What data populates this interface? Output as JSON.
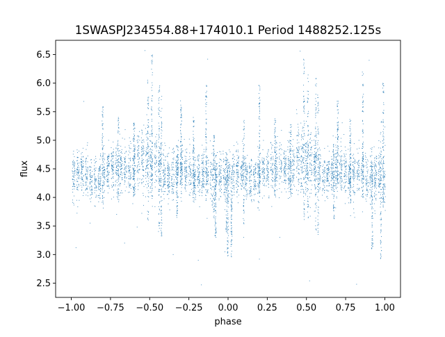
{
  "chart_data": {
    "type": "scatter",
    "title": "1SWASPJ234554.88+174010.1 Period 1488252.125s",
    "xlabel": "phase",
    "ylabel": "flux",
    "xlim": [
      -1.1,
      1.1
    ],
    "ylim": [
      2.25,
      6.75
    ],
    "xticks": [
      -1.0,
      -0.75,
      -0.5,
      -0.25,
      0.0,
      0.25,
      0.5,
      0.75,
      1.0
    ],
    "xtick_labels": [
      "−1.00",
      "−0.75",
      "−0.50",
      "−0.25",
      "0.00",
      "0.25",
      "0.50",
      "0.75",
      "1.00"
    ],
    "yticks": [
      2.5,
      3.0,
      3.5,
      4.0,
      4.5,
      5.0,
      5.5,
      6.0,
      6.5
    ],
    "ytick_labels": [
      "2.5",
      "3.0",
      "3.5",
      "4.0",
      "4.5",
      "5.0",
      "5.5",
      "6.0",
      "6.5"
    ],
    "grid": false,
    "marker_color": "#1f77b4",
    "marker_size": "tiny",
    "folded_period": 1.0,
    "profile": {
      "phase": [
        0.0,
        0.025,
        0.05,
        0.075,
        0.1,
        0.125,
        0.15,
        0.175,
        0.2,
        0.225,
        0.25,
        0.275,
        0.3,
        0.325,
        0.35,
        0.375,
        0.4,
        0.425,
        0.45,
        0.475,
        0.5,
        0.525,
        0.55,
        0.575,
        0.6,
        0.625,
        0.65,
        0.675,
        0.7,
        0.725,
        0.75,
        0.775,
        0.8,
        0.825,
        0.85,
        0.875,
        0.9,
        0.925,
        0.95,
        0.975,
        1.0
      ],
      "median_flux": [
        4.35,
        4.4,
        4.45,
        4.45,
        4.4,
        4.35,
        4.3,
        4.3,
        4.4,
        4.45,
        4.5,
        4.5,
        4.55,
        4.55,
        4.55,
        4.5,
        4.55,
        4.6,
        4.65,
        4.65,
        4.6,
        4.6,
        4.55,
        4.45,
        4.35,
        4.35,
        4.4,
        4.5,
        4.55,
        4.5,
        4.45,
        4.35,
        4.35,
        4.4,
        4.45,
        4.4,
        4.35,
        4.35,
        4.4,
        4.4,
        4.35
      ],
      "spread": [
        0.25,
        0.2,
        0.2,
        0.2,
        0.2,
        0.2,
        0.2,
        0.2,
        0.2,
        0.2,
        0.2,
        0.22,
        0.22,
        0.22,
        0.22,
        0.22,
        0.25,
        0.28,
        0.3,
        0.3,
        0.3,
        0.28,
        0.25,
        0.2,
        0.2,
        0.2,
        0.2,
        0.22,
        0.25,
        0.22,
        0.2,
        0.2,
        0.2,
        0.2,
        0.2,
        0.2,
        0.2,
        0.22,
        0.22,
        0.22,
        0.25
      ]
    },
    "streaks": [
      {
        "phase": -0.002,
        "low": 2.95,
        "high": 4.6
      },
      {
        "phase": 0.022,
        "low": 2.9,
        "high": 4.4
      },
      {
        "phase": -0.09,
        "low": 3.6,
        "high": 5.1
      },
      {
        "phase": 0.1,
        "low": 3.5,
        "high": 5.35
      },
      {
        "phase": -0.3,
        "low": 4.2,
        "high": 5.7
      },
      {
        "phase": -0.325,
        "low": 3.6,
        "high": 5.0
      },
      {
        "phase": 0.7,
        "low": 4.2,
        "high": 5.7
      },
      {
        "phase": 0.675,
        "low": 3.6,
        "high": 5.0
      },
      {
        "phase": -0.44,
        "low": 3.4,
        "high": 6.15
      },
      {
        "phase": -0.425,
        "low": 3.3,
        "high": 5.8
      },
      {
        "phase": -0.485,
        "low": 3.7,
        "high": 6.5
      },
      {
        "phase": -0.51,
        "low": 3.6,
        "high": 6.1
      },
      {
        "phase": 0.485,
        "low": 3.6,
        "high": 6.45
      },
      {
        "phase": 0.51,
        "low": 3.6,
        "high": 6.15
      },
      {
        "phase": 0.56,
        "low": 3.4,
        "high": 6.1
      },
      {
        "phase": 0.575,
        "low": 3.3,
        "high": 5.8
      },
      {
        "phase": -0.7,
        "low": 3.9,
        "high": 5.4
      },
      {
        "phase": 0.3,
        "low": 4.0,
        "high": 5.4
      },
      {
        "phase": 0.2,
        "low": 4.0,
        "high": 6.0
      },
      {
        "phase": -0.8,
        "low": 3.8,
        "high": 5.6
      },
      {
        "phase": 0.86,
        "low": 4.0,
        "high": 6.2
      },
      {
        "phase": -0.14,
        "low": 3.9,
        "high": 6.0
      },
      {
        "phase": 0.92,
        "low": 3.1,
        "high": 4.6
      },
      {
        "phase": -0.08,
        "low": 3.3,
        "high": 4.6
      },
      {
        "phase": 0.975,
        "low": 2.9,
        "high": 5.4
      },
      {
        "phase": 0.99,
        "low": 3.8,
        "high": 6.0
      },
      {
        "phase": -0.01,
        "low": 3.4,
        "high": 4.8
      },
      {
        "phase": -0.6,
        "low": 4.0,
        "high": 5.3
      },
      {
        "phase": 0.4,
        "low": 4.0,
        "high": 5.3
      },
      {
        "phase": -0.22,
        "low": 3.9,
        "high": 5.4
      },
      {
        "phase": 0.78,
        "low": 3.9,
        "high": 5.4
      }
    ],
    "outliers": [
      {
        "x": -0.97,
        "y": 3.12
      },
      {
        "x": -0.66,
        "y": 3.2
      },
      {
        "x": -0.58,
        "y": 3.48
      },
      {
        "x": -0.53,
        "y": 6.57
      },
      {
        "x": -0.35,
        "y": 3.0
      },
      {
        "x": -0.19,
        "y": 2.9
      },
      {
        "x": -0.17,
        "y": 2.47
      },
      {
        "x": -0.13,
        "y": 6.42
      },
      {
        "x": -0.02,
        "y": 3.05
      },
      {
        "x": 0.1,
        "y": 3.3
      },
      {
        "x": 0.2,
        "y": 2.92
      },
      {
        "x": 0.33,
        "y": 3.3
      },
      {
        "x": 0.46,
        "y": 6.56
      },
      {
        "x": 0.52,
        "y": 2.54
      },
      {
        "x": 0.82,
        "y": 2.48
      },
      {
        "x": 0.9,
        "y": 6.4
      },
      {
        "x": -0.92,
        "y": 5.68
      },
      {
        "x": -0.88,
        "y": 3.55
      }
    ]
  }
}
